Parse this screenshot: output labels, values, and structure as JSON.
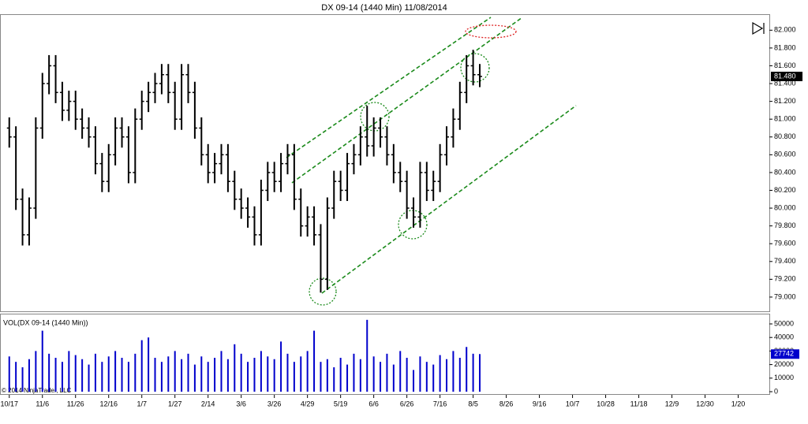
{
  "chart_data": [
    {
      "type": "ohlc",
      "title": "DX 09-14 (1440 Min)  11/08/2014",
      "last_price_label": "81.480",
      "copyright": "© 2014 NinjaTrader, LLC",
      "color": "#000000",
      "open": [
        80.9,
        80.8,
        80.1,
        79.7,
        80.0,
        80.9,
        81.4,
        81.6,
        81.3,
        81.1,
        81.2,
        81.0,
        80.9,
        80.8,
        80.5,
        80.3,
        80.6,
        80.9,
        80.8,
        80.4,
        81.0,
        81.2,
        81.3,
        81.4,
        81.5,
        81.3,
        81.0,
        81.5,
        81.3,
        80.9,
        80.6,
        80.4,
        80.5,
        80.6,
        80.3,
        80.1,
        80.0,
        79.9,
        79.7,
        80.2,
        80.4,
        80.3,
        80.5,
        80.6,
        80.1,
        79.8,
        79.9,
        79.7,
        79.2,
        80.0,
        80.3,
        80.2,
        80.5,
        80.6,
        80.8,
        80.7,
        80.9,
        80.8,
        80.6,
        80.4,
        80.3,
        80.0,
        79.9,
        80.4,
        80.2,
        80.3,
        80.6,
        80.8,
        81.0,
        81.3,
        81.6,
        81.5
      ],
      "high": [
        81.02,
        80.92,
        80.22,
        80.12,
        81.02,
        81.52,
        81.72,
        81.72,
        81.42,
        81.32,
        81.32,
        81.12,
        81.02,
        80.92,
        80.62,
        80.72,
        81.02,
        81.02,
        80.92,
        81.12,
        81.32,
        81.42,
        81.52,
        81.62,
        81.62,
        81.42,
        81.62,
        81.62,
        81.42,
        81.02,
        80.72,
        80.62,
        80.72,
        80.72,
        80.42,
        80.22,
        80.12,
        80.02,
        80.32,
        80.52,
        80.52,
        80.62,
        80.72,
        80.72,
        80.22,
        80.02,
        80.02,
        79.82,
        80.12,
        80.42,
        80.42,
        80.62,
        80.72,
        80.92,
        81.15,
        81.02,
        81.02,
        80.92,
        80.72,
        80.52,
        80.42,
        80.12,
        80.52,
        80.52,
        80.42,
        80.72,
        80.92,
        81.12,
        81.42,
        81.72,
        81.78,
        81.62
      ],
      "low": [
        80.68,
        79.98,
        79.58,
        79.58,
        79.88,
        80.78,
        81.28,
        81.18,
        80.98,
        80.98,
        80.88,
        80.78,
        80.68,
        80.38,
        80.18,
        80.18,
        80.48,
        80.68,
        80.28,
        80.28,
        80.88,
        81.08,
        81.18,
        81.28,
        81.18,
        80.88,
        80.88,
        81.18,
        80.78,
        80.48,
        80.28,
        80.28,
        80.38,
        80.18,
        79.98,
        79.88,
        79.78,
        79.58,
        79.58,
        80.08,
        80.18,
        80.18,
        80.38,
        79.98,
        79.68,
        79.68,
        79.58,
        79.05,
        79.08,
        79.88,
        80.08,
        80.08,
        80.38,
        80.48,
        80.58,
        80.58,
        80.68,
        80.48,
        80.28,
        80.18,
        79.88,
        79.78,
        79.78,
        80.08,
        80.08,
        80.18,
        80.48,
        80.68,
        80.88,
        81.18,
        81.38,
        81.36
      ],
      "close": [
        80.8,
        80.1,
        79.7,
        80.0,
        80.9,
        81.4,
        81.6,
        81.3,
        81.1,
        81.2,
        81.0,
        80.9,
        80.8,
        80.5,
        80.3,
        80.6,
        80.9,
        80.8,
        80.4,
        81.0,
        81.2,
        81.3,
        81.4,
        81.5,
        81.3,
        81.0,
        81.5,
        81.3,
        80.9,
        80.6,
        80.4,
        80.5,
        80.6,
        80.3,
        80.1,
        80.0,
        79.9,
        79.7,
        80.2,
        80.4,
        80.3,
        80.5,
        80.6,
        80.1,
        79.8,
        79.9,
        79.7,
        79.2,
        80.0,
        80.3,
        80.2,
        80.5,
        80.6,
        80.8,
        80.7,
        80.9,
        80.8,
        80.6,
        80.4,
        80.3,
        80.0,
        79.9,
        80.4,
        80.2,
        80.3,
        80.6,
        80.8,
        81.0,
        81.3,
        81.6,
        81.5,
        81.48
      ],
      "xlim": [
        -1.4,
        114.7
      ],
      "xticks": [
        {
          "value": 0,
          "label": "10/17"
        },
        {
          "value": 5,
          "label": "11/6"
        },
        {
          "value": 10,
          "label": "11/26"
        },
        {
          "value": 15,
          "label": "12/16"
        },
        {
          "value": 20,
          "label": "1/7"
        },
        {
          "value": 25,
          "label": "1/27"
        },
        {
          "value": 30,
          "label": "2/14"
        },
        {
          "value": 35,
          "label": "3/6"
        },
        {
          "value": 40,
          "label": "3/26"
        },
        {
          "value": 45,
          "label": "4/29"
        },
        {
          "value": 50,
          "label": "5/19"
        },
        {
          "value": 55,
          "label": "6/6"
        },
        {
          "value": 60,
          "label": "6/26"
        },
        {
          "value": 65,
          "label": "7/16"
        },
        {
          "value": 70,
          "label": "8/5"
        },
        {
          "value": 75,
          "label": "8/26"
        },
        {
          "value": 80,
          "label": "9/16"
        },
        {
          "value": 85,
          "label": "10/7"
        },
        {
          "value": 90,
          "label": "10/28"
        },
        {
          "value": 95,
          "label": "11/18"
        },
        {
          "value": 100,
          "label": "12/9"
        },
        {
          "value": 105,
          "label": "12/30"
        },
        {
          "value": 110,
          "label": "1/20"
        }
      ],
      "ylim": [
        78.84,
        82.18
      ],
      "yticks": [
        {
          "value": 79,
          "label": "79.000"
        },
        {
          "value": 79.2,
          "label": "79.200"
        },
        {
          "value": 79.4,
          "label": "79.400"
        },
        {
          "value": 79.6,
          "label": "79.600"
        },
        {
          "value": 79.8,
          "label": "79.800"
        },
        {
          "value": 80,
          "label": "80.000"
        },
        {
          "value": 80.2,
          "label": "80.200"
        },
        {
          "value": 80.4,
          "label": "80.400"
        },
        {
          "value": 80.6,
          "label": "80.600"
        },
        {
          "value": 80.8,
          "label": "80.800"
        },
        {
          "value": 81,
          "label": "81.000"
        },
        {
          "value": 81.2,
          "label": "81.200"
        },
        {
          "value": 81.4,
          "label": "81.400"
        },
        {
          "value": 81.6,
          "label": "81.600"
        },
        {
          "value": 81.8,
          "label": "81.800"
        },
        {
          "value": 82,
          "label": "82.000"
        }
      ]
    },
    {
      "type": "bar",
      "title": "VOL(DX 09-14 (1440 Min))",
      "color": "#0000cc",
      "values": [
        26000,
        22000,
        18000,
        24000,
        30000,
        45000,
        28000,
        25000,
        22000,
        30000,
        27000,
        24000,
        20000,
        28000,
        22000,
        26000,
        30000,
        25000,
        22000,
        28000,
        38000,
        40000,
        25000,
        22000,
        26000,
        30000,
        24000,
        28000,
        20000,
        26000,
        22000,
        25000,
        30000,
        24000,
        35000,
        28000,
        22000,
        25000,
        30000,
        26000,
        24000,
        37000,
        28000,
        22000,
        26000,
        30000,
        45000,
        22000,
        24000,
        18000,
        25000,
        20000,
        28000,
        24000,
        53000,
        26000,
        22000,
        28000,
        20000,
        30000,
        25000,
        16000,
        26000,
        22000,
        20000,
        27000,
        24000,
        30000,
        25000,
        33000,
        28000,
        27742
      ],
      "ylim": [
        -1744,
        57558
      ],
      "yticks": [
        0,
        10000,
        20000,
        30000,
        40000,
        50000
      ]
    }
  ]
}
